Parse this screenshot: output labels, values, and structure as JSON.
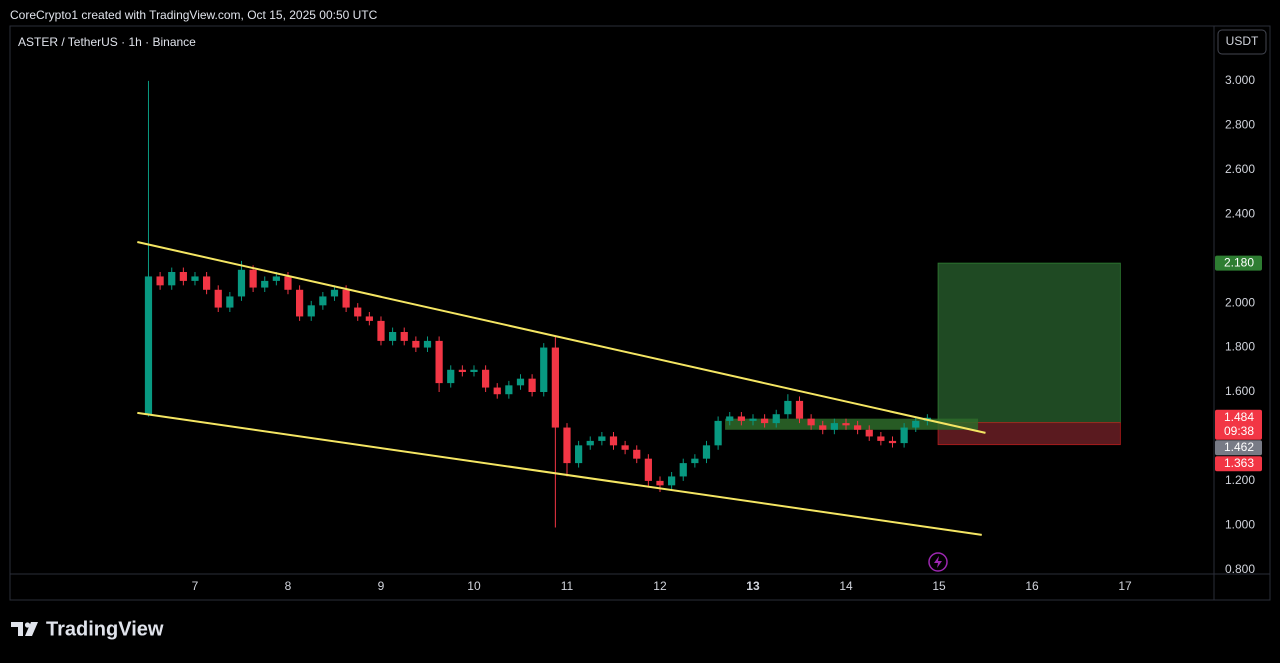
{
  "header": {
    "attribution": "CoreCrypto1 created with TradingView.com, Oct 15, 2025 00:50 UTC"
  },
  "chart_data": {
    "type": "candlestick",
    "title": "ASTER / TetherUS · 1h · Binance",
    "currency": "USDT",
    "up_color": "#089981",
    "down_color": "#f23645",
    "x": [
      6.5,
      6.625,
      6.75,
      6.875,
      7.0,
      7.125,
      7.25,
      7.375,
      7.5,
      7.625,
      7.75,
      7.875,
      8.0,
      8.125,
      8.25,
      8.375,
      8.5,
      8.625,
      8.75,
      8.875,
      9.0,
      9.125,
      9.25,
      9.375,
      9.5,
      9.625,
      9.75,
      9.875,
      10.0,
      10.125,
      10.25,
      10.375,
      10.5,
      10.625,
      10.75,
      10.875,
      11.0,
      11.125,
      11.25,
      11.375,
      11.5,
      11.625,
      11.75,
      11.875,
      12.0,
      12.125,
      12.25,
      12.375,
      12.5,
      12.625,
      12.75,
      12.875,
      13.0,
      13.125,
      13.25,
      13.375,
      13.5,
      13.625,
      13.75,
      13.875,
      14.0,
      14.125,
      14.25,
      14.375,
      14.5,
      14.625,
      14.75,
      14.875
    ],
    "open": [
      1.5,
      2.12,
      2.08,
      2.14,
      2.1,
      2.12,
      2.06,
      1.98,
      2.03,
      2.15,
      2.07,
      2.1,
      2.12,
      2.06,
      1.94,
      1.99,
      2.03,
      2.06,
      1.98,
      1.94,
      1.92,
      1.83,
      1.87,
      1.83,
      1.8,
      1.83,
      1.64,
      1.7,
      1.69,
      1.7,
      1.62,
      1.59,
      1.63,
      1.66,
      1.6,
      1.8,
      1.44,
      1.28,
      1.36,
      1.38,
      1.4,
      1.36,
      1.34,
      1.3,
      1.2,
      1.18,
      1.22,
      1.28,
      1.3,
      1.36,
      1.47,
      1.49,
      1.47,
      1.48,
      1.46,
      1.5,
      1.56,
      1.48,
      1.45,
      1.43,
      1.46,
      1.45,
      1.43,
      1.4,
      1.38,
      1.37,
      1.44,
      1.47
    ],
    "high": [
      3.0,
      2.14,
      2.16,
      2.16,
      2.14,
      2.14,
      2.08,
      2.05,
      2.19,
      2.17,
      2.12,
      2.14,
      2.14,
      2.08,
      2.01,
      2.05,
      2.08,
      2.08,
      2.0,
      1.96,
      1.94,
      1.89,
      1.89,
      1.85,
      1.85,
      1.85,
      1.72,
      1.72,
      1.72,
      1.72,
      1.64,
      1.65,
      1.68,
      1.68,
      1.82,
      1.85,
      1.46,
      1.38,
      1.4,
      1.42,
      1.42,
      1.38,
      1.36,
      1.32,
      1.22,
      1.24,
      1.3,
      1.32,
      1.38,
      1.49,
      1.51,
      1.51,
      1.5,
      1.5,
      1.52,
      1.59,
      1.58,
      1.5,
      1.47,
      1.48,
      1.48,
      1.47,
      1.45,
      1.42,
      1.4,
      1.46,
      1.49,
      1.5
    ],
    "low": [
      1.49,
      2.06,
      2.06,
      2.08,
      2.08,
      2.04,
      1.96,
      1.96,
      2.01,
      2.05,
      2.05,
      2.08,
      2.04,
      1.92,
      1.92,
      1.97,
      2.01,
      1.96,
      1.92,
      1.9,
      1.81,
      1.81,
      1.81,
      1.78,
      1.78,
      1.6,
      1.62,
      1.67,
      1.67,
      1.6,
      1.57,
      1.57,
      1.61,
      1.58,
      1.58,
      0.99,
      1.22,
      1.26,
      1.34,
      1.36,
      1.34,
      1.32,
      1.28,
      1.17,
      1.15,
      1.16,
      1.2,
      1.26,
      1.28,
      1.34,
      1.45,
      1.45,
      1.45,
      1.44,
      1.44,
      1.48,
      1.46,
      1.43,
      1.41,
      1.41,
      1.43,
      1.41,
      1.38,
      1.36,
      1.35,
      1.35,
      1.42,
      1.45
    ],
    "close": [
      2.12,
      2.08,
      2.14,
      2.1,
      2.12,
      2.06,
      1.98,
      2.03,
      2.15,
      2.07,
      2.1,
      2.12,
      2.06,
      1.94,
      1.99,
      2.03,
      2.06,
      1.98,
      1.94,
      1.92,
      1.83,
      1.87,
      1.83,
      1.8,
      1.83,
      1.64,
      1.7,
      1.69,
      1.7,
      1.62,
      1.59,
      1.63,
      1.66,
      1.6,
      1.8,
      1.44,
      1.28,
      1.36,
      1.38,
      1.4,
      1.36,
      1.34,
      1.3,
      1.2,
      1.18,
      1.22,
      1.28,
      1.3,
      1.36,
      1.47,
      1.49,
      1.47,
      1.48,
      1.46,
      1.5,
      1.56,
      1.48,
      1.45,
      1.43,
      1.46,
      1.45,
      1.43,
      1.4,
      1.38,
      1.37,
      1.44,
      1.47,
      1.484
    ],
    "xlim": [
      5.011,
      17.957
    ],
    "ylim": [
      0.781,
      3.247
    ],
    "xticks": [
      7,
      8,
      9,
      10,
      11,
      12,
      13,
      14,
      15,
      16,
      17
    ],
    "xtick_bold": [
      13
    ],
    "yticks": [
      {
        "value": 3.0,
        "label": "3.000"
      },
      {
        "value": 2.8,
        "label": "2.800"
      },
      {
        "value": 2.6,
        "label": "2.600"
      },
      {
        "value": 2.4,
        "label": "2.400"
      },
      {
        "value": 2.0,
        "label": "2.000"
      },
      {
        "value": 1.8,
        "label": "1.800"
      },
      {
        "value": 1.6,
        "label": "1.600"
      },
      {
        "value": 1.2,
        "label": "1.200"
      },
      {
        "value": 1.0,
        "label": "1.000"
      },
      {
        "value": 0.8,
        "label": "0.800"
      }
    ],
    "trendline_color": "#f5e663",
    "trendlines": [
      {
        "x": [
          6.38,
          15.5
        ],
        "y": [
          2.275,
          1.416
        ]
      },
      {
        "x": [
          6.38,
          15.46
        ],
        "y": [
          1.506,
          0.957
        ]
      }
    ],
    "zone": {
      "x": [
        12.7,
        15.42
      ],
      "y": [
        1.43,
        1.48
      ],
      "color": "#2e6b2a"
    },
    "position": {
      "x": [
        14.99,
        16.95
      ],
      "entry": 1.462,
      "target": {
        "value": 2.18,
        "label": "2.180"
      },
      "stop": 1.363,
      "target_color": "#1f4a23",
      "stop_color": "#5a1a1f"
    },
    "last_price": 1.484,
    "countdown": "09:38"
  },
  "footer": {
    "brand": "TradingView"
  }
}
